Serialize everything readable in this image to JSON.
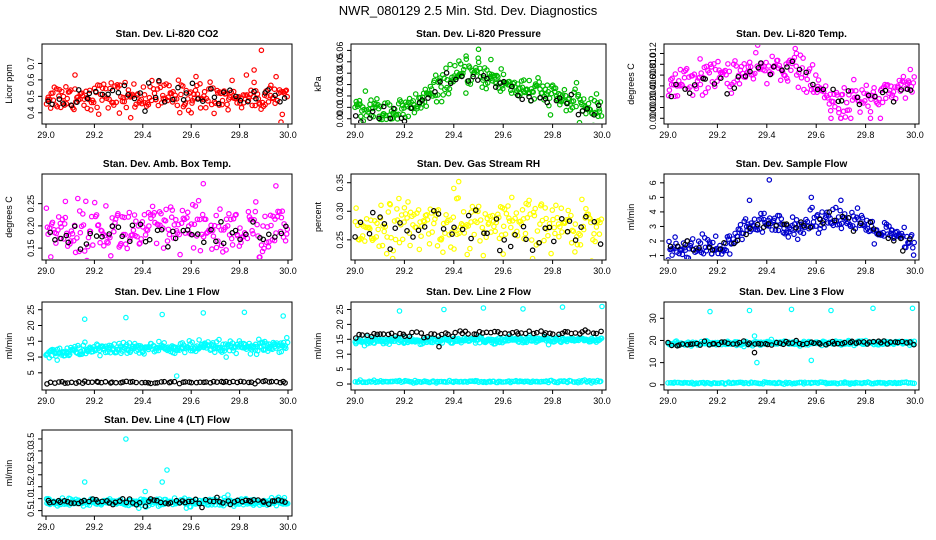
{
  "figure_title": "NWR_080129  2.5 Min. Std. Dev. Diagnostics",
  "chart_data": [
    {
      "type": "scatter",
      "title": "Stan. Dev. Li-820 CO2",
      "ylabel": "Licor ppm",
      "xlim": [
        29.0,
        30.0
      ],
      "ylim": [
        0.35,
        0.8
      ],
      "xticks": [
        "29.0",
        "29.2",
        "29.4",
        "29.6",
        "29.8",
        "30.0"
      ],
      "yticks": [
        "0.4",
        "0.5",
        "0.6",
        "0.7"
      ],
      "series": [
        {
          "name": "main",
          "color": "#ff0000",
          "profile": [
            [
              29.0,
              0.5
            ],
            [
              30.0,
              0.5
            ]
          ],
          "noise": 0.045,
          "count": 240,
          "outliers": [
            [
              29.12,
              0.63
            ],
            [
              29.35,
              0.37
            ],
            [
              29.62,
              0.62
            ],
            [
              29.86,
              0.66
            ],
            [
              29.89,
              0.78
            ],
            [
              29.6,
              0.4
            ]
          ]
        },
        {
          "name": "black",
          "color": "#000000",
          "profile": [
            [
              29.0,
              0.5
            ],
            [
              30.0,
              0.5
            ]
          ],
          "noise": 0.035,
          "count": 45,
          "outliers": []
        }
      ]
    },
    {
      "type": "scatter",
      "title": "Stan. Dev. Li-820 Pressure",
      "ylabel": "kPa",
      "xlim": [
        29.0,
        30.0
      ],
      "ylim": [
        -0.002,
        0.063
      ],
      "xticks": [
        "29.0",
        "29.2",
        "29.4",
        "29.6",
        "29.8",
        "30.0"
      ],
      "yticks": [
        "0.00",
        "0.01",
        "0.02",
        "0.03",
        "0.04",
        "0.05",
        "0.06"
      ],
      "series": [
        {
          "name": "main",
          "color": "#00bb00",
          "profile": [
            [
              29.0,
              0.008
            ],
            [
              29.2,
              0.006
            ],
            [
              29.3,
              0.02
            ],
            [
              29.38,
              0.035
            ],
            [
              29.5,
              0.04
            ],
            [
              29.62,
              0.03
            ],
            [
              29.8,
              0.02
            ],
            [
              30.0,
              0.006
            ]
          ],
          "noise": 0.006,
          "count": 300,
          "outliers": [
            [
              29.5,
              0.061
            ],
            [
              29.45,
              0.055
            ],
            [
              29.55,
              0.052
            ]
          ]
        },
        {
          "name": "black",
          "color": "#000000",
          "profile": [
            [
              29.0,
              0.005
            ],
            [
              29.2,
              0.004
            ],
            [
              29.3,
              0.02
            ],
            [
              29.4,
              0.035
            ],
            [
              29.5,
              0.038
            ],
            [
              29.62,
              0.028
            ],
            [
              29.8,
              0.015
            ],
            [
              30.0,
              0.005
            ]
          ],
          "noise": 0.004,
          "count": 45,
          "outliers": []
        }
      ]
    },
    {
      "type": "scatter",
      "title": "Stan. Dev. Li-820 Temp.",
      "ylabel": "degrees C",
      "xlim": [
        29.0,
        30.0
      ],
      "ylim": [
        -0.0005,
        0.0132
      ],
      "xticks": [
        "29.0",
        "29.2",
        "29.4",
        "29.6",
        "29.8",
        "30.0"
      ],
      "yticks": [
        "0.000",
        "0.002",
        "0.004",
        "0.006",
        "0.008",
        "0.010",
        "0.012"
      ],
      "series": [
        {
          "name": "main",
          "color": "#ff00ff",
          "profile": [
            [
              29.0,
              0.006
            ],
            [
              29.2,
              0.008
            ],
            [
              29.4,
              0.009
            ],
            [
              29.5,
              0.01
            ],
            [
              29.6,
              0.006
            ],
            [
              29.65,
              0.003
            ],
            [
              29.8,
              0.0035
            ],
            [
              30.0,
              0.007
            ]
          ],
          "noise": 0.0015,
          "count": 240,
          "outliers": [
            [
              29.66,
              0.0
            ],
            [
              29.7,
              0.0
            ],
            [
              29.74,
              0.0
            ],
            [
              29.82,
              0.0
            ],
            [
              29.86,
              0.0
            ],
            [
              29.13,
              0.011
            ],
            [
              29.52,
              0.012
            ]
          ]
        },
        {
          "name": "black",
          "color": "#000000",
          "profile": [
            [
              29.0,
              0.005
            ],
            [
              29.2,
              0.007
            ],
            [
              29.4,
              0.009
            ],
            [
              29.5,
              0.011
            ],
            [
              29.6,
              0.006
            ],
            [
              29.7,
              0.003
            ],
            [
              29.85,
              0.004
            ],
            [
              30.0,
              0.006
            ]
          ],
          "noise": 0.001,
          "count": 40,
          "outliers": []
        }
      ]
    },
    {
      "type": "scatter",
      "title": "Stan. Dev. Amb. Box Temp.",
      "ylabel": "degrees C",
      "xlim": [
        29.0,
        30.0
      ],
      "ylim": [
        0.13,
        0.31
      ],
      "xticks": [
        "29.0",
        "29.2",
        "29.4",
        "29.6",
        "29.8",
        "30.0"
      ],
      "yticks": [
        "0.15",
        "0.20",
        "0.25"
      ],
      "series": [
        {
          "name": "main",
          "color": "#ff00ff",
          "profile": [
            [
              29.0,
              0.19
            ],
            [
              30.0,
              0.19
            ]
          ],
          "noise": 0.03,
          "count": 240,
          "outliers": [
            [
              29.65,
              0.295
            ],
            [
              29.95,
              0.29
            ],
            [
              29.08,
              0.255
            ]
          ]
        },
        {
          "name": "black",
          "color": "#000000",
          "profile": [
            [
              29.0,
              0.175
            ],
            [
              30.0,
              0.175
            ]
          ],
          "noise": 0.015,
          "count": 45,
          "outliers": []
        }
      ]
    },
    {
      "type": "scatter",
      "title": "Stan. Dev. Gas Stream RH",
      "ylabel": "percent",
      "xlim": [
        29.0,
        30.0
      ],
      "ylim": [
        0.22,
        0.36
      ],
      "xticks": [
        "29.0",
        "29.2",
        "29.4",
        "29.6",
        "29.8",
        "30.0"
      ],
      "yticks": [
        "0.25",
        "0.30",
        "0.35"
      ],
      "series": [
        {
          "name": "main",
          "color": "#ffff00",
          "profile": [
            [
              29.0,
              0.275
            ],
            [
              30.0,
              0.275
            ]
          ],
          "noise": 0.022,
          "count": 240,
          "outliers": [
            [
              29.42,
              0.352
            ],
            [
              29.4,
              0.34
            ],
            [
              29.6,
              0.225
            ]
          ]
        },
        {
          "name": "black",
          "color": "#000000",
          "profile": [
            [
              29.0,
              0.27
            ],
            [
              30.0,
              0.27
            ]
          ],
          "noise": 0.018,
          "count": 45,
          "outliers": []
        }
      ]
    },
    {
      "type": "scatter",
      "title": "Stan. Dev. Sample Flow",
      "ylabel": "ml/min",
      "xlim": [
        29.0,
        30.0
      ],
      "ylim": [
        0.9,
        6.4
      ],
      "xticks": [
        "29.0",
        "29.2",
        "29.4",
        "29.6",
        "29.8",
        "30.0"
      ],
      "yticks": [
        "1",
        "2",
        "3",
        "4",
        "5",
        "6"
      ],
      "series": [
        {
          "name": "main",
          "color": "#0000cc",
          "profile": [
            [
              29.0,
              1.5
            ],
            [
              29.25,
              1.6
            ],
            [
              29.32,
              3.0
            ],
            [
              29.45,
              3.2
            ],
            [
              29.55,
              3.0
            ],
            [
              29.65,
              3.8
            ],
            [
              29.8,
              3.0
            ],
            [
              30.0,
              1.8
            ]
          ],
          "noise": 0.4,
          "count": 260,
          "outliers": [
            [
              29.41,
              6.2
            ],
            [
              29.33,
              4.8
            ],
            [
              29.7,
              4.8
            ],
            [
              29.58,
              5.0
            ]
          ]
        },
        {
          "name": "black",
          "color": "#000000",
          "profile": [
            [
              29.0,
              1.4
            ],
            [
              29.25,
              1.6
            ],
            [
              29.32,
              2.8
            ],
            [
              29.45,
              3.0
            ],
            [
              29.55,
              2.8
            ],
            [
              29.65,
              3.8
            ],
            [
              29.8,
              2.8
            ],
            [
              30.0,
              1.8
            ]
          ],
          "noise": 0.3,
          "count": 40,
          "outliers": []
        }
      ]
    },
    {
      "type": "scatter",
      "title": "Stan. Dev. Line 1 Flow",
      "ylabel": "ml/min",
      "xlim": [
        29.0,
        30.0
      ],
      "ylim": [
        0.5,
        26.5
      ],
      "xticks": [
        "29.0",
        "29.2",
        "29.4",
        "29.6",
        "29.8",
        "30.0"
      ],
      "yticks": [
        "5",
        "10",
        "15",
        "20",
        "25"
      ],
      "series": [
        {
          "name": "main",
          "color": "#00ffff",
          "profile": [
            [
              29.0,
              11
            ],
            [
              29.2,
              12.5
            ],
            [
              29.6,
              13
            ],
            [
              30.0,
              13
            ]
          ],
          "noise": 1.0,
          "count": 320,
          "outliers": [
            [
              29.16,
              22
            ],
            [
              29.33,
              22.5
            ],
            [
              29.48,
              23.5
            ],
            [
              29.65,
              24
            ],
            [
              29.82,
              24.2
            ],
            [
              29.98,
              23
            ],
            [
              29.54,
              4
            ]
          ]
        },
        {
          "name": "black",
          "color": "#000000",
          "profile": [
            [
              29.0,
              2
            ],
            [
              30.0,
              2
            ]
          ],
          "noise": 0.25,
          "count": 70,
          "outliers": []
        }
      ]
    },
    {
      "type": "scatter",
      "title": "Stan. Dev. Line 2 Flow",
      "ylabel": "ml/min",
      "xlim": [
        29.0,
        30.0
      ],
      "ylim": [
        -1.0,
        26.5
      ],
      "xticks": [
        "29.0",
        "29.2",
        "29.4",
        "29.6",
        "29.8",
        "30.0"
      ],
      "yticks": [
        "0",
        "5",
        "10",
        "15",
        "20",
        "25"
      ],
      "series": [
        {
          "name": "main",
          "color": "#00ffff",
          "profile": [
            [
              29.0,
              14.5
            ],
            [
              30.0,
              15
            ]
          ],
          "noise": 0.5,
          "count": 300,
          "outliers": [
            [
              29.18,
              24.5
            ],
            [
              29.36,
              25
            ],
            [
              29.52,
              25.5
            ],
            [
              29.68,
              25.2
            ],
            [
              29.84,
              25.8
            ],
            [
              30.0,
              26
            ]
          ]
        },
        {
          "name": "low",
          "color": "#00ffff",
          "profile": [
            [
              29.0,
              0.8
            ],
            [
              30.0,
              0.8
            ]
          ],
          "noise": 0.2,
          "count": 150,
          "outliers": []
        },
        {
          "name": "black",
          "color": "#000000",
          "profile": [
            [
              29.0,
              16.5
            ],
            [
              30.0,
              17.5
            ]
          ],
          "noise": 0.4,
          "count": 70,
          "outliers": [
            [
              29.34,
              12.5
            ]
          ]
        }
      ]
    },
    {
      "type": "scatter",
      "title": "Stan. Dev. Line 3 Flow",
      "ylabel": "ml/min",
      "xlim": [
        29.0,
        30.0
      ],
      "ylim": [
        -1.0,
        36.0
      ],
      "xticks": [
        "29.0",
        "29.2",
        "29.4",
        "29.6",
        "29.8",
        "30.0"
      ],
      "yticks": [
        "0",
        "10",
        "20",
        "30"
      ],
      "series": [
        {
          "name": "main",
          "color": "#00ffff",
          "profile": [
            [
              29.0,
              18.5
            ],
            [
              30.0,
              19
            ]
          ],
          "noise": 0.5,
          "count": 300,
          "outliers": [
            [
              29.17,
              33
            ],
            [
              29.33,
              33.5
            ],
            [
              29.5,
              34
            ],
            [
              29.66,
              33.5
            ],
            [
              29.83,
              34.5
            ],
            [
              29.99,
              34.5
            ],
            [
              29.35,
              22
            ],
            [
              29.36,
              10
            ],
            [
              29.58,
              11
            ]
          ]
        },
        {
          "name": "low",
          "color": "#00ffff",
          "profile": [
            [
              29.0,
              0.8
            ],
            [
              30.0,
              0.8
            ]
          ],
          "noise": 0.2,
          "count": 150,
          "outliers": []
        },
        {
          "name": "black",
          "color": "#000000",
          "profile": [
            [
              29.0,
              18.5
            ],
            [
              30.0,
              19
            ]
          ],
          "noise": 0.5,
          "count": 70,
          "outliers": [
            [
              29.35,
              14.5
            ]
          ]
        }
      ]
    },
    {
      "type": "scatter",
      "title": "Stan. Dev. Line 4 (LT) Flow",
      "ylabel": "ml/min",
      "xlim": [
        29.0,
        30.0
      ],
      "ylim": [
        0.4,
        3.75
      ],
      "xticks": [
        "29.0",
        "29.2",
        "29.4",
        "29.6",
        "29.8",
        "30.0"
      ],
      "yticks": [
        "0.5",
        "1.0",
        "1.5",
        "2.0",
        "2.5",
        "3.0",
        "3.5"
      ],
      "series": [
        {
          "name": "main",
          "color": "#00ffff",
          "profile": [
            [
              29.0,
              0.85
            ],
            [
              30.0,
              0.85
            ]
          ],
          "noise": 0.08,
          "count": 320,
          "outliers": [
            [
              29.33,
              3.5
            ],
            [
              29.16,
              1.7
            ],
            [
              29.5,
              2.2
            ],
            [
              29.48,
              1.7
            ],
            [
              29.41,
              1.3
            ]
          ]
        },
        {
          "name": "black",
          "color": "#000000",
          "profile": [
            [
              29.0,
              0.85
            ],
            [
              30.0,
              0.9
            ]
          ],
          "noise": 0.08,
          "count": 70,
          "outliers": []
        }
      ]
    }
  ]
}
